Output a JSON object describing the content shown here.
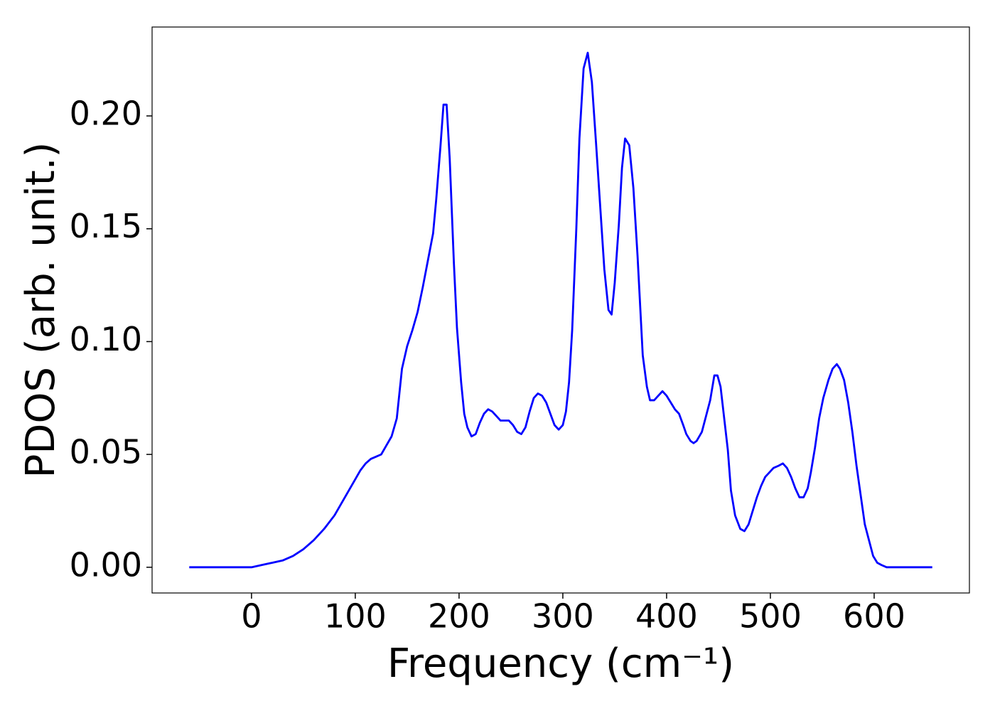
{
  "chart_data": {
    "type": "line",
    "xlabel": "Frequency (cm⁻¹)",
    "ylabel": "PDOS (arb. unit.)",
    "color": "#0000ff",
    "x": [
      -60,
      -50,
      -40,
      -30,
      -20,
      -10,
      0,
      10,
      20,
      30,
      40,
      50,
      60,
      70,
      80,
      90,
      100,
      105,
      110,
      115,
      120,
      125,
      130,
      135,
      140,
      145,
      150,
      155,
      160,
      165,
      170,
      175,
      178,
      182,
      185,
      188,
      191,
      195,
      198,
      202,
      205,
      208,
      212,
      216,
      220,
      224,
      228,
      232,
      236,
      240,
      244,
      248,
      252,
      256,
      260,
      264,
      268,
      272,
      276,
      280,
      284,
      288,
      292,
      296,
      300,
      303,
      306,
      309,
      313,
      316,
      320,
      324,
      328,
      332,
      336,
      340,
      344,
      347,
      350,
      354,
      357,
      360,
      364,
      368,
      372,
      377,
      381,
      384,
      388,
      392,
      396,
      400,
      404,
      408,
      412,
      416,
      419,
      423,
      426,
      429,
      434,
      438,
      442,
      446,
      449,
      452,
      455,
      459,
      462,
      466,
      471,
      475,
      479,
      483,
      487,
      491,
      495,
      499,
      503,
      508,
      512,
      516,
      520,
      524,
      528,
      532,
      536,
      539,
      543,
      547,
      551,
      556,
      560,
      564,
      567,
      571,
      575,
      579,
      583,
      587,
      591,
      595,
      599,
      603,
      607,
      612,
      620,
      630,
      640,
      656
    ],
    "values": [
      0,
      0,
      0,
      0,
      0,
      0,
      0,
      0.001,
      0.002,
      0.003,
      0.005,
      0.008,
      0.012,
      0.017,
      0.023,
      0.031,
      0.039,
      0.043,
      0.046,
      0.048,
      0.049,
      0.05,
      0.054,
      0.058,
      0.066,
      0.088,
      0.098,
      0.105,
      0.113,
      0.124,
      0.136,
      0.148,
      0.163,
      0.186,
      0.205,
      0.205,
      0.181,
      0.135,
      0.106,
      0.082,
      0.068,
      0.062,
      0.058,
      0.059,
      0.064,
      0.068,
      0.07,
      0.069,
      0.067,
      0.065,
      0.065,
      0.065,
      0.063,
      0.06,
      0.059,
      0.062,
      0.069,
      0.075,
      0.077,
      0.076,
      0.073,
      0.068,
      0.063,
      0.061,
      0.063,
      0.069,
      0.082,
      0.105,
      0.15,
      0.19,
      0.221,
      0.228,
      0.215,
      0.188,
      0.16,
      0.132,
      0.114,
      0.112,
      0.126,
      0.152,
      0.177,
      0.19,
      0.187,
      0.168,
      0.138,
      0.094,
      0.08,
      0.074,
      0.074,
      0.076,
      0.078,
      0.076,
      0.073,
      0.07,
      0.068,
      0.063,
      0.059,
      0.056,
      0.055,
      0.056,
      0.06,
      0.067,
      0.074,
      0.085,
      0.085,
      0.08,
      0.068,
      0.052,
      0.034,
      0.023,
      0.017,
      0.016,
      0.019,
      0.025,
      0.031,
      0.036,
      0.04,
      0.042,
      0.044,
      0.045,
      0.046,
      0.044,
      0.04,
      0.035,
      0.031,
      0.031,
      0.035,
      0.042,
      0.053,
      0.066,
      0.075,
      0.083,
      0.088,
      0.09,
      0.088,
      0.083,
      0.073,
      0.06,
      0.045,
      0.032,
      0.019,
      0.012,
      0.005,
      0.002,
      0.001,
      0,
      0,
      0,
      0,
      0
    ],
    "xlim": [
      -95.8,
      691.8
    ],
    "ylim": [
      -0.0114,
      0.2394
    ],
    "xticks": [
      0,
      100,
      200,
      300,
      400,
      500,
      600
    ],
    "yticks": [
      {
        "value": 0,
        "label": "0.00"
      },
      0.05,
      {
        "value": 0.1,
        "label": "0.10"
      },
      0.15,
      {
        "value": 0.2,
        "label": "0.20"
      }
    ]
  }
}
